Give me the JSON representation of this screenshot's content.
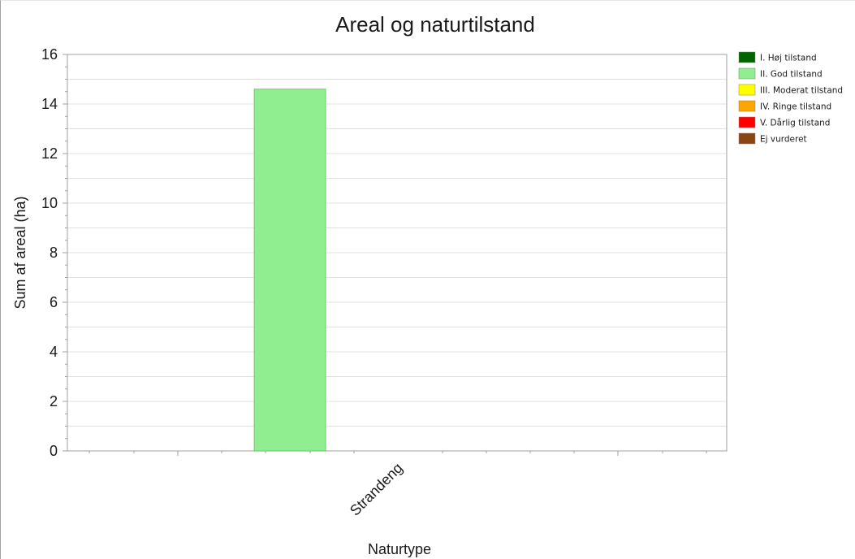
{
  "chart_data": {
    "type": "bar",
    "title": "Areal og naturtilstand",
    "xlabel": "Naturtype",
    "ylabel": "Sum af areal (ha)",
    "categories": [
      "Strandeng"
    ],
    "ylim": [
      0,
      16
    ],
    "yticks": [
      0,
      2,
      4,
      6,
      8,
      10,
      12,
      14,
      16
    ],
    "grid": true,
    "legend_position": "right",
    "series": [
      {
        "name": "I. Høj tilstand",
        "color": "#006400",
        "values": [
          0
        ]
      },
      {
        "name": "II. God tilstand",
        "color": "#90EE90",
        "values": [
          14.6
        ]
      },
      {
        "name": "III. Moderat tilstand",
        "color": "#FFFF00",
        "values": [
          0
        ]
      },
      {
        "name": "IV. Ringe tilstand",
        "color": "#FFA500",
        "values": [
          0
        ]
      },
      {
        "name": "V. Dårlig tilstand",
        "color": "#FF0000",
        "values": [
          0
        ]
      },
      {
        "name": "Ej vurderet",
        "color": "#8B4513",
        "values": [
          0
        ]
      }
    ]
  }
}
